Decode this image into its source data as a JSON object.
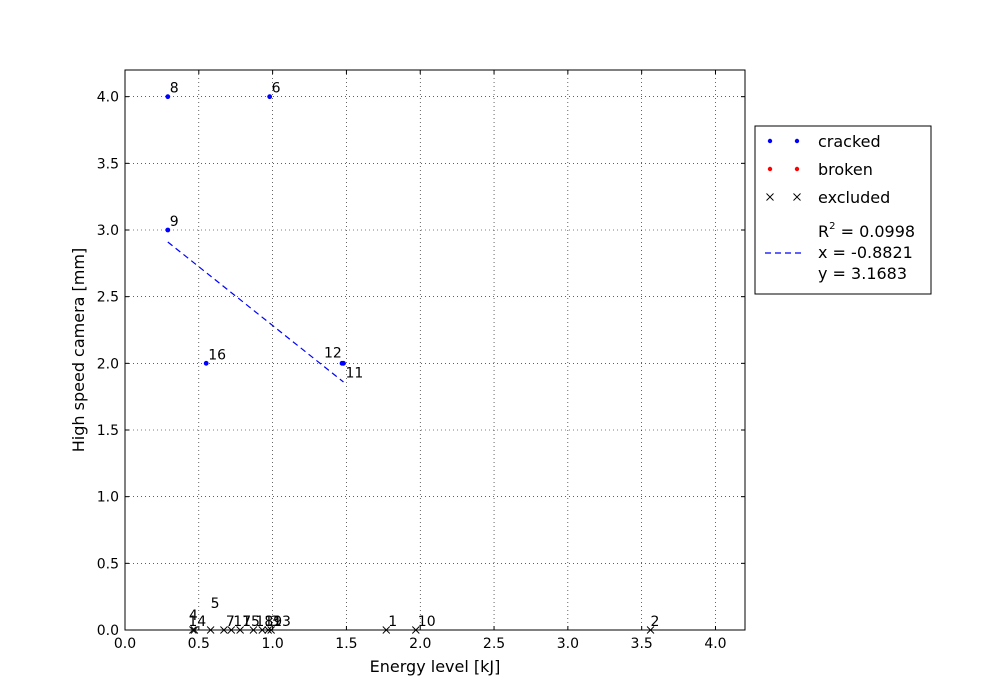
{
  "chart_data": {
    "type": "scatter",
    "xlabel": "Energy level [kJ]",
    "ylabel": "High speed camera [mm]",
    "xlim": [
      0.0,
      4.2
    ],
    "ylim": [
      0.0,
      4.2
    ],
    "x_ticks": [
      "0.0",
      "0.5",
      "1.0",
      "1.5",
      "2.0",
      "2.5",
      "3.0",
      "3.5",
      "4.0"
    ],
    "y_ticks": [
      "0.0",
      "0.5",
      "1.0",
      "1.5",
      "2.0",
      "2.5",
      "3.0",
      "3.5",
      "4.0"
    ],
    "grid": true,
    "legend_position": "outside-right",
    "colors": {
      "cracked": "#0000ff",
      "broken": "#ff0000",
      "excluded": "#000000",
      "fit": "#0000ff"
    },
    "series": [
      {
        "name": "cracked",
        "marker": "dot",
        "points": [
          {
            "label": "8",
            "x": 0.29,
            "y": 4.0
          },
          {
            "label": "6",
            "x": 0.98,
            "y": 4.0
          },
          {
            "label": "9",
            "x": 0.29,
            "y": 3.0
          },
          {
            "label": "16",
            "x": 0.55,
            "y": 2.0
          },
          {
            "label": "12",
            "x": 1.47,
            "y": 2.0
          },
          {
            "label": "11",
            "x": 1.48,
            "y": 2.0
          }
        ]
      },
      {
        "name": "broken",
        "marker": "dot",
        "points": []
      },
      {
        "name": "excluded",
        "marker": "x",
        "points": [
          {
            "label": "4",
            "x": 0.46,
            "y": 0.0
          },
          {
            "label": "14",
            "x": 0.47,
            "y": 0.0
          },
          {
            "label": "5",
            "x": 0.58,
            "y": 0.0
          },
          {
            "label": "7",
            "x": 0.67,
            "y": 0.0
          },
          {
            "label": "17",
            "x": 0.72,
            "y": 0.0
          },
          {
            "label": "15",
            "x": 0.78,
            "y": 0.0
          },
          {
            "label": "18",
            "x": 0.87,
            "y": 0.0
          },
          {
            "label": "19",
            "x": 0.93,
            "y": 0.0
          },
          {
            "label": "3",
            "x": 0.97,
            "y": 0.0
          },
          {
            "label": "13",
            "x": 0.99,
            "y": 0.0
          },
          {
            "label": "1",
            "x": 1.77,
            "y": 0.0
          },
          {
            "label": "10",
            "x": 1.97,
            "y": 0.0
          },
          {
            "label": "2",
            "x": 3.56,
            "y": 0.0
          }
        ]
      }
    ],
    "fit_line": {
      "style": "dashed",
      "x": [
        0.29,
        1.48
      ],
      "y": [
        2.91,
        1.86
      ]
    },
    "legend": {
      "entries": [
        "cracked",
        "broken",
        "excluded"
      ],
      "fit_lines": [
        "R$^2$ = 0.0998",
        "x = -0.8821",
        "y = 3.1683"
      ]
    }
  }
}
